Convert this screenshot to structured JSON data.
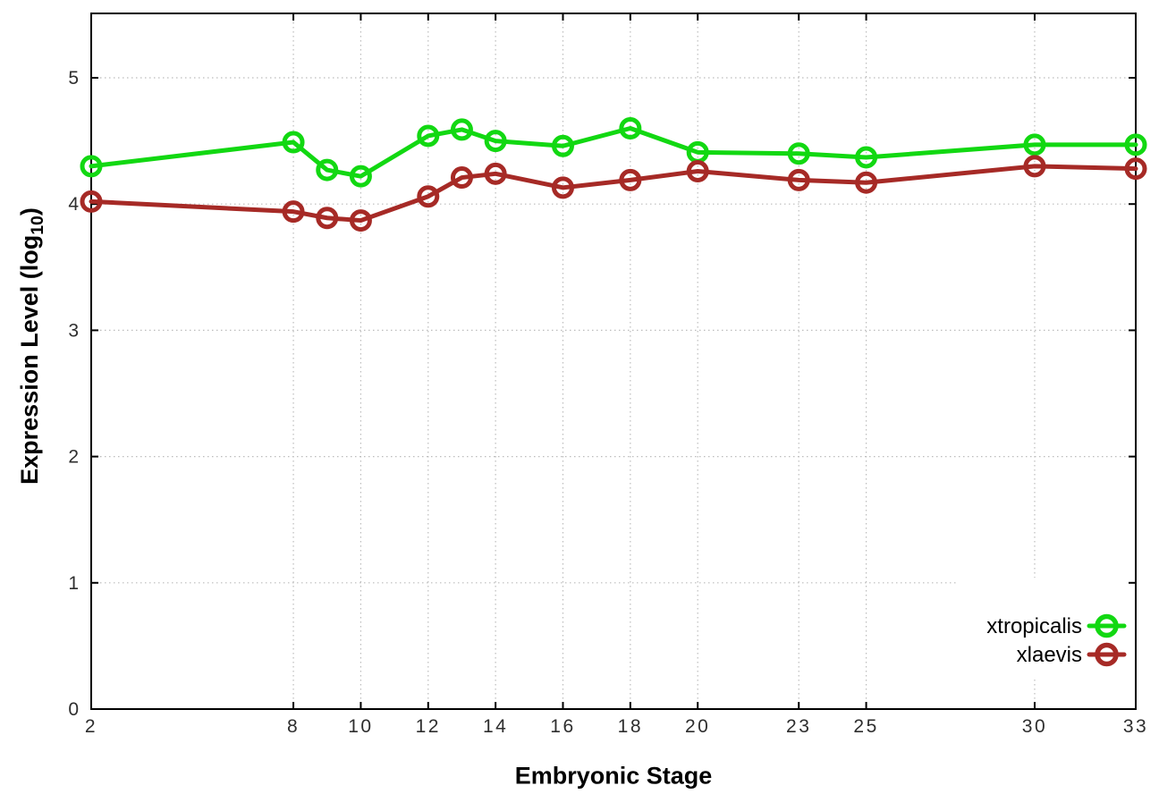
{
  "figure": {
    "background": "#ffffff"
  },
  "chart_data": {
    "type": "line",
    "title": "",
    "xlabel": "Embryonic Stage",
    "ylabel_prefix": "Expression Level (log",
    "ylabel_sub": "10",
    "ylabel_suffix": ")",
    "x": [
      2,
      8,
      9,
      10,
      12,
      13,
      14,
      16,
      18,
      20,
      23,
      25,
      30,
      33
    ],
    "series": [
      {
        "name": "xtropicalis",
        "color": "#12d812",
        "values": [
          4.3,
          4.49,
          4.27,
          4.22,
          4.54,
          4.59,
          4.5,
          4.46,
          4.6,
          4.41,
          4.4,
          4.37,
          4.47,
          4.47
        ]
      },
      {
        "name": "xlaevis",
        "color": "#a62a26",
        "values": [
          4.02,
          3.94,
          3.89,
          3.87,
          4.06,
          4.21,
          4.24,
          4.13,
          4.19,
          4.26,
          4.19,
          4.17,
          4.3,
          4.28
        ]
      }
    ],
    "x_ticks": [
      2,
      8,
      10,
      12,
      14,
      16,
      18,
      20,
      23,
      25,
      30,
      33
    ],
    "y_ticks": [
      0,
      1,
      2,
      3,
      4,
      5
    ],
    "xlim": [
      2,
      33
    ],
    "ylim": [
      0,
      5.51
    ],
    "grid": true,
    "legend_position": "bottom-right",
    "marker": "open-circle",
    "grid_color": "#bcbcbc",
    "axis_color": "#000000",
    "tick_label_color": "#2e2e2e"
  }
}
